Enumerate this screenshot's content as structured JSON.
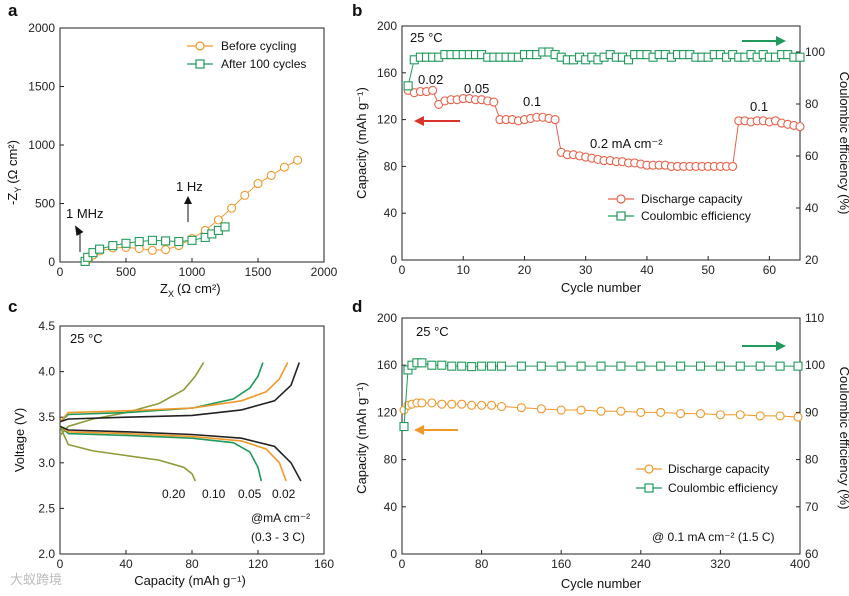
{
  "watermark": "大蚁跨境",
  "charts": [
    {
      "panel": "a",
      "type": "scatter",
      "xlabel": "Z",
      "xlabel_sub": "X",
      "xlabel_unit": "(Ω cm²)",
      "ylabel": "-Z",
      "ylabel_sub": "Y",
      "ylabel_unit": "(Ω cm²)",
      "xlim": [
        0,
        2000
      ],
      "ylim": [
        0,
        2000
      ],
      "xticks": [
        0,
        500,
        1000,
        1500,
        2000
      ],
      "yticks": [
        0,
        500,
        1000,
        1500,
        2000
      ],
      "legend_placement": "top-right",
      "annotations": [
        "1 MHz",
        "1 Hz"
      ],
      "series": [
        {
          "name": "Before cycling",
          "color": "#f0982a",
          "marker": "circle",
          "points": [
            [
              200,
              5
            ],
            [
              220,
              30
            ],
            [
              250,
              60
            ],
            [
              300,
              95
            ],
            [
              400,
              120
            ],
            [
              500,
              125
            ],
            [
              600,
              115
            ],
            [
              700,
              100
            ],
            [
              800,
              105
            ],
            [
              900,
              140
            ],
            [
              1000,
              200
            ],
            [
              1100,
              270
            ],
            [
              1200,
              360
            ],
            [
              1300,
              460
            ],
            [
              1400,
              570
            ],
            [
              1500,
              670
            ],
            [
              1600,
              740
            ],
            [
              1700,
              810
            ],
            [
              1800,
              870
            ]
          ]
        },
        {
          "name": "After 100 cycles",
          "color": "#1f9a5a",
          "marker": "square",
          "points": [
            [
              190,
              5
            ],
            [
              210,
              40
            ],
            [
              250,
              80
            ],
            [
              300,
              110
            ],
            [
              400,
              140
            ],
            [
              500,
              160
            ],
            [
              600,
              175
            ],
            [
              700,
              185
            ],
            [
              800,
              180
            ],
            [
              900,
              175
            ],
            [
              1000,
              185
            ],
            [
              1100,
              210
            ],
            [
              1150,
              240
            ],
            [
              1200,
              270
            ],
            [
              1250,
              300
            ]
          ]
        }
      ]
    },
    {
      "panel": "b",
      "type": "scatter",
      "xlabel": "Cycle number",
      "ylabel": "Capacity (mAh g⁻¹)",
      "ylabel_right": "Coulombic efficiency (%)",
      "xlim": [
        0,
        65
      ],
      "ylim": [
        0,
        200
      ],
      "ylim_right": [
        20,
        110
      ],
      "xticks": [
        0,
        10,
        20,
        30,
        40,
        50,
        60
      ],
      "yticks": [
        0,
        40,
        80,
        120,
        160,
        200
      ],
      "yticks_right": [
        20,
        40,
        60,
        80,
        100
      ],
      "legend_placement": "bottom-right",
      "annotations": [
        "25 °C",
        "0.02",
        "0.05",
        "0.1",
        "0.2 mA cm⁻²",
        "0.1"
      ],
      "series": [
        {
          "name": "Discharge capacity",
          "color": "#e8624a",
          "marker": "circle",
          "axis": "left",
          "x": [
            1,
            2,
            3,
            4,
            5,
            6,
            7,
            8,
            9,
            10,
            11,
            12,
            13,
            14,
            15,
            16,
            17,
            18,
            19,
            20,
            21,
            22,
            23,
            24,
            25,
            26,
            27,
            28,
            29,
            30,
            31,
            32,
            33,
            34,
            35,
            36,
            37,
            38,
            39,
            40,
            41,
            42,
            43,
            44,
            45,
            46,
            47,
            48,
            49,
            50,
            51,
            52,
            53,
            54,
            55,
            56,
            57,
            58,
            59,
            60,
            61,
            62,
            63,
            64,
            65
          ],
          "y": [
            145,
            143,
            144,
            144,
            145,
            133,
            136,
            137,
            137,
            138,
            138,
            137,
            137,
            136,
            135,
            120,
            120,
            120,
            119,
            120,
            121,
            122,
            122,
            121,
            120,
            92,
            90,
            90,
            89,
            88,
            87,
            86,
            85,
            85,
            84,
            84,
            83,
            83,
            82,
            81,
            81,
            81,
            81,
            80,
            80,
            80,
            80,
            80,
            80,
            80,
            80,
            80,
            80,
            80,
            119,
            119,
            118,
            119,
            119,
            118,
            119,
            117,
            116,
            115,
            114
          ]
        },
        {
          "name": "Coulombic efficiency",
          "color": "#1f9a5a",
          "marker": "square",
          "axis": "right",
          "x": [
            1,
            2,
            3,
            4,
            5,
            6,
            7,
            8,
            9,
            10,
            11,
            12,
            13,
            14,
            15,
            16,
            17,
            18,
            19,
            20,
            21,
            22,
            23,
            24,
            25,
            26,
            27,
            28,
            29,
            30,
            31,
            32,
            33,
            34,
            35,
            36,
            37,
            38,
            39,
            40,
            41,
            42,
            43,
            44,
            45,
            46,
            47,
            48,
            49,
            50,
            51,
            52,
            53,
            54,
            55,
            56,
            57,
            58,
            59,
            60,
            61,
            62,
            63,
            64,
            65
          ],
          "y": [
            87,
            97,
            98,
            98,
            98,
            98,
            99,
            99,
            99,
            99,
            99,
            99,
            99,
            98,
            98,
            98,
            98,
            98,
            98,
            99,
            99,
            99,
            100,
            100,
            99,
            98,
            97,
            97,
            98,
            97,
            98,
            97,
            98,
            99,
            98,
            98,
            97,
            99,
            99,
            99,
            98,
            99,
            99,
            98,
            99,
            99,
            99,
            98,
            98,
            98,
            99,
            99,
            98,
            99,
            98,
            98,
            99,
            98,
            99,
            98,
            98,
            99,
            99,
            98,
            98
          ]
        }
      ]
    },
    {
      "panel": "c",
      "type": "line",
      "xlabel": "Capacity (mAh g⁻¹)",
      "ylabel": "Voltage (V)",
      "xlim": [
        0,
        160
      ],
      "ylim": [
        2.0,
        4.5
      ],
      "xticks": [
        0,
        40,
        80,
        120,
        160
      ],
      "yticks": [
        2.0,
        2.5,
        3.0,
        3.5,
        4.0,
        4.5
      ],
      "annotations": [
        "25 °C",
        "@mA cm⁻²",
        "(0.3 - 3 C)"
      ],
      "series": [
        {
          "name": "0.20",
          "color": "#8f9a37",
          "charge": [
            [
              0,
              3.3
            ],
            [
              5,
              3.4
            ],
            [
              20,
              3.48
            ],
            [
              40,
              3.55
            ],
            [
              60,
              3.65
            ],
            [
              75,
              3.8
            ],
            [
              82,
              3.95
            ],
            [
              87,
              4.1
            ]
          ],
          "discharge": [
            [
              0,
              3.4
            ],
            [
              5,
              3.2
            ],
            [
              20,
              3.13
            ],
            [
              40,
              3.08
            ],
            [
              60,
              3.03
            ],
            [
              75,
              2.95
            ],
            [
              80,
              2.88
            ],
            [
              82,
              2.8
            ]
          ]
        },
        {
          "name": "0.10",
          "color": "#1f9a5a",
          "charge": [
            [
              0,
              3.45
            ],
            [
              5,
              3.53
            ],
            [
              40,
              3.55
            ],
            [
              80,
              3.6
            ],
            [
              105,
              3.7
            ],
            [
              115,
              3.82
            ],
            [
              120,
              3.95
            ],
            [
              123,
              4.1
            ]
          ],
          "discharge": [
            [
              0,
              3.4
            ],
            [
              5,
              3.32
            ],
            [
              40,
              3.3
            ],
            [
              80,
              3.27
            ],
            [
              105,
              3.22
            ],
            [
              115,
              3.12
            ],
            [
              120,
              2.95
            ],
            [
              122,
              2.8
            ]
          ]
        },
        {
          "name": "0.05",
          "color": "#f0982a",
          "charge": [
            [
              0,
              3.45
            ],
            [
              5,
              3.55
            ],
            [
              40,
              3.57
            ],
            [
              80,
              3.6
            ],
            [
              110,
              3.68
            ],
            [
              125,
              3.78
            ],
            [
              133,
              3.92
            ],
            [
              138,
              4.1
            ]
          ],
          "discharge": [
            [
              0,
              3.4
            ],
            [
              5,
              3.34
            ],
            [
              40,
              3.32
            ],
            [
              80,
              3.29
            ],
            [
              110,
              3.24
            ],
            [
              125,
              3.15
            ],
            [
              133,
              3.0
            ],
            [
              137,
              2.8
            ]
          ]
        },
        {
          "name": "0.02",
          "color": "#222222",
          "charge": [
            [
              0,
              3.45
            ],
            [
              5,
              3.48
            ],
            [
              40,
              3.5
            ],
            [
              80,
              3.52
            ],
            [
              110,
              3.58
            ],
            [
              130,
              3.68
            ],
            [
              140,
              3.85
            ],
            [
              145,
              4.1
            ]
          ],
          "discharge": [
            [
              0,
              3.4
            ],
            [
              5,
              3.36
            ],
            [
              40,
              3.34
            ],
            [
              80,
              3.31
            ],
            [
              110,
              3.27
            ],
            [
              130,
              3.18
            ],
            [
              140,
              3.0
            ],
            [
              146,
              2.8
            ]
          ]
        }
      ]
    },
    {
      "panel": "d",
      "type": "scatter",
      "xlabel": "Cycle number",
      "ylabel": "Capacity (mAh g⁻¹)",
      "ylabel_right": "Coulombic efficiency (%)",
      "xlim": [
        0,
        400
      ],
      "ylim": [
        0,
        200
      ],
      "ylim_right": [
        60,
        110
      ],
      "xticks": [
        0,
        80,
        160,
        240,
        320,
        400
      ],
      "yticks": [
        0,
        40,
        80,
        120,
        160,
        200
      ],
      "yticks_right": [
        60,
        70,
        80,
        90,
        100,
        110
      ],
      "legend_placement": "bottom-right",
      "annotations": [
        "25 °C",
        "@ 0.1 mA cm⁻² (1.5 C)"
      ],
      "series": [
        {
          "name": "Discharge capacity",
          "color": "#f0982a",
          "marker": "circle",
          "axis": "left",
          "x": [
            2,
            6,
            10,
            15,
            20,
            30,
            40,
            50,
            60,
            70,
            80,
            90,
            100,
            120,
            140,
            160,
            180,
            200,
            220,
            240,
            260,
            280,
            300,
            320,
            340,
            360,
            380,
            398
          ],
          "y": [
            122,
            126,
            127,
            128,
            128,
            128,
            127,
            127,
            127,
            126,
            126,
            126,
            125,
            124,
            123,
            122,
            122,
            121,
            121,
            120,
            120,
            119,
            119,
            118,
            118,
            117,
            117,
            116
          ]
        },
        {
          "name": "Coulombic efficiency",
          "color": "#1f9a5a",
          "marker": "square",
          "axis": "right",
          "x": [
            2,
            6,
            10,
            15,
            20,
            30,
            40,
            50,
            60,
            70,
            80,
            90,
            100,
            120,
            140,
            160,
            180,
            200,
            220,
            240,
            260,
            280,
            300,
            320,
            340,
            360,
            380,
            398
          ],
          "y": [
            87,
            99,
            100,
            100.5,
            100.5,
            100,
            100,
            99.8,
            99.8,
            99.7,
            99.8,
            99.8,
            99.8,
            99.8,
            99.8,
            99.8,
            99.8,
            99.8,
            99.8,
            99.8,
            99.8,
            99.8,
            99.8,
            99.8,
            99.8,
            99.8,
            99.8,
            99.8
          ]
        }
      ]
    }
  ]
}
